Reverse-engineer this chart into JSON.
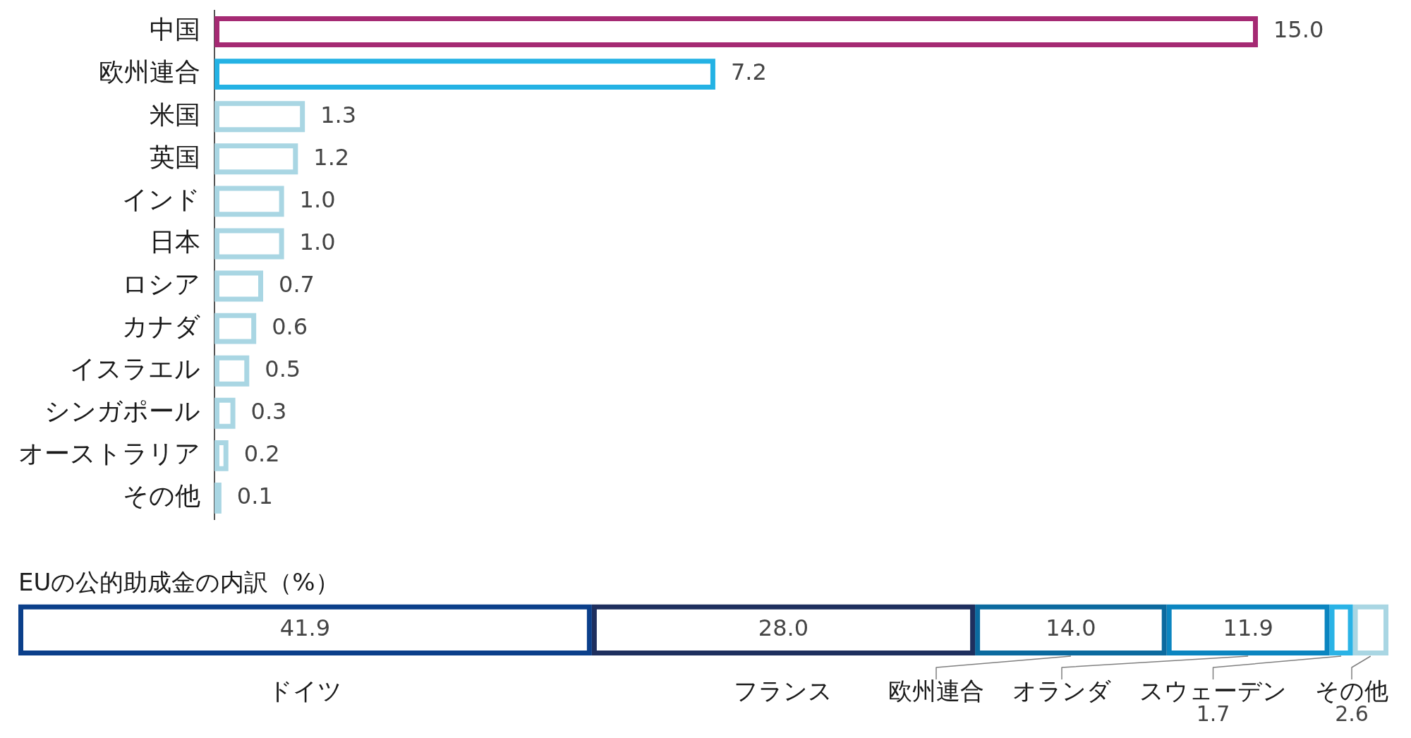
{
  "chart_data": [
    {
      "type": "bar",
      "orientation": "horizontal",
      "categories": [
        "中国",
        "欧州連合",
        "米国",
        "英国",
        "インド",
        "日本",
        "ロシア",
        "カナダ",
        "イスラエル",
        "シンガポール",
        "オーストラリア",
        "その他"
      ],
      "values": [
        15.0,
        7.2,
        1.3,
        1.2,
        1.0,
        1.0,
        0.7,
        0.6,
        0.5,
        0.3,
        0.2,
        0.1
      ],
      "value_labels": [
        "15.0",
        "7.2",
        "1.3",
        "1.2",
        "1.0",
        "1.0",
        "0.7",
        "0.6",
        "0.5",
        "0.3",
        "0.2",
        "0.1"
      ],
      "colors": [
        "#a52a73",
        "#24b2e4",
        "#a9d6e3",
        "#a9d6e3",
        "#a9d6e3",
        "#a9d6e3",
        "#a9d6e3",
        "#a9d6e3",
        "#a9d6e3",
        "#a9d6e3",
        "#a9d6e3",
        "#a9d6e3"
      ],
      "tick_labels": "y"
    },
    {
      "type": "bar",
      "orientation": "horizontal",
      "stacked": true,
      "title": "EUの公的助成金の内訳（%）",
      "categories": [
        null
      ],
      "series": [
        {
          "name": "ドイツ",
          "color": "#0b3f8a",
          "values": [
            41.9
          ],
          "value_labels": [
            "41.9"
          ]
        },
        {
          "name": "フランス",
          "color": "#1e2f5e",
          "values": [
            28.0
          ],
          "value_labels": [
            "28.0"
          ]
        },
        {
          "name": "欧州連合",
          "color": "#0b6a9f",
          "values": [
            14.0
          ],
          "value_labels": [
            "14.0"
          ]
        },
        {
          "name": "オランダ",
          "color": "#0b85c0",
          "values": [
            11.9
          ],
          "value_labels": [
            "11.9"
          ]
        },
        {
          "name": "スウェーデン",
          "color": "#2ab3e6",
          "values": [
            1.7
          ],
          "value_labels": [
            "1.7"
          ]
        },
        {
          "name": "その他",
          "color": "#a9d6e3",
          "values": [
            2.6
          ],
          "value_labels": [
            "2.6"
          ]
        }
      ],
      "tick_labels": false
    }
  ]
}
